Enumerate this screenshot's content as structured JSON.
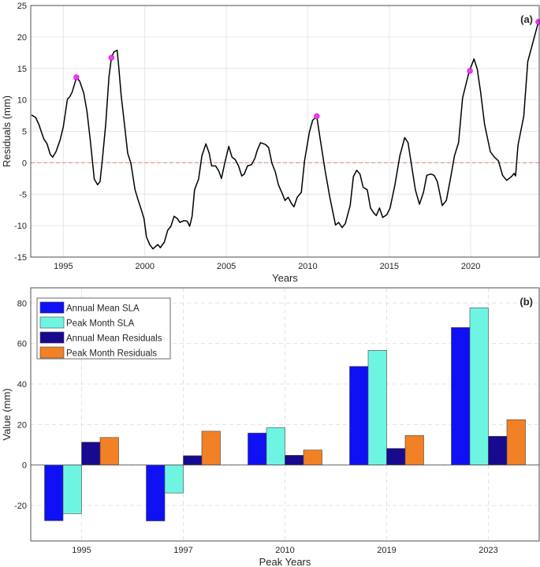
{
  "chart_data": [
    {
      "type": "line",
      "panel_label": "(a)",
      "xlabel": "Years",
      "ylabel": "Residuals (mm)",
      "xlim": [
        1993.0,
        2024.2
      ],
      "ylim": [
        -15,
        25
      ],
      "xticks": [
        1995,
        2000,
        2005,
        2010,
        2015,
        2020
      ],
      "yticks": [
        -15,
        -10,
        -5,
        0,
        5,
        10,
        15,
        20,
        25
      ],
      "grid": true,
      "zero_line": {
        "y": 0,
        "style": "dashed",
        "color": "#f08080"
      },
      "line_color": "#000000",
      "x": [
        1993.05,
        1993.3,
        1993.5,
        1993.8,
        1994.0,
        1994.2,
        1994.35,
        1994.55,
        1994.8,
        1995.0,
        1995.25,
        1995.4,
        1995.55,
        1995.8,
        1996.0,
        1996.25,
        1996.45,
        1996.65,
        1996.9,
        1997.1,
        1997.25,
        1997.4,
        1997.6,
        1997.8,
        1997.95,
        1998.1,
        1998.3,
        1998.4,
        1998.55,
        1998.75,
        1998.95,
        1999.15,
        1999.4,
        1999.6,
        1999.8,
        1999.95,
        2000.1,
        2000.3,
        2000.5,
        2000.8,
        2000.95,
        2001.2,
        2001.4,
        2001.6,
        2001.8,
        2002.0,
        2002.15,
        2002.4,
        2002.6,
        2002.75,
        2002.9,
        2003.05,
        2003.3,
        2003.5,
        2003.75,
        2003.95,
        2004.1,
        2004.35,
        2004.55,
        2004.7,
        2004.9,
        2005.15,
        2005.35,
        2005.55,
        2005.75,
        2005.95,
        2006.1,
        2006.3,
        2006.55,
        2006.75,
        2006.9,
        2007.1,
        2007.4,
        2007.6,
        2007.8,
        2008.0,
        2008.2,
        2008.4,
        2008.6,
        2008.8,
        2009.0,
        2009.15,
        2009.35,
        2009.6,
        2009.8,
        2010.1,
        2010.3,
        2010.55,
        2010.75,
        2011.05,
        2011.35,
        2011.7,
        2011.9,
        2012.1,
        2012.3,
        2012.6,
        2012.8,
        2013.0,
        2013.2,
        2013.4,
        2013.65,
        2013.85,
        2014.05,
        2014.2,
        2014.4,
        2014.6,
        2014.85,
        2015.05,
        2015.35,
        2015.65,
        2015.95,
        2016.15,
        2016.35,
        2016.6,
        2016.85,
        2017.1,
        2017.3,
        2017.55,
        2017.75,
        2017.95,
        2018.25,
        2018.5,
        2018.75,
        2019.0,
        2019.25,
        2019.5,
        2019.9,
        2020.2,
        2020.4,
        2020.6,
        2020.85,
        2021.2,
        2021.45,
        2021.7,
        2021.95,
        2022.2,
        2022.5,
        2022.65,
        2022.75,
        2022.9,
        2023.25,
        2023.5,
        2024.15
      ],
      "y": [
        7.6,
        7.2,
        6.1,
        3.8,
        3.0,
        1.3,
        0.9,
        1.75,
        3.6,
        5.7,
        10.1,
        10.5,
        11.3,
        13.5,
        13.0,
        11.1,
        8.2,
        3.6,
        -2.6,
        -3.5,
        -3.0,
        0.7,
        6.1,
        13.6,
        16.7,
        17.6,
        17.9,
        15.3,
        10.7,
        6.1,
        1.5,
        -0.1,
        -4.3,
        -6.0,
        -7.6,
        -8.9,
        -11.8,
        -13.0,
        -13.7,
        -13.0,
        -13.5,
        -12.6,
        -10.75,
        -10.1,
        -8.5,
        -8.9,
        -9.5,
        -9.2,
        -9.3,
        -10.1,
        -8.5,
        -4.3,
        -2.6,
        1.1,
        3.0,
        1.5,
        -0.5,
        -0.5,
        -1.4,
        -2.5,
        -0.1,
        2.6,
        0.9,
        0.5,
        -0.5,
        -2.1,
        -1.8,
        -0.5,
        -0.3,
        0.7,
        2.0,
        3.2,
        2.9,
        2.4,
        -0.1,
        -1.4,
        -3.5,
        -4.7,
        -6.0,
        -5.5,
        -6.5,
        -7.0,
        -5.5,
        -4.7,
        0.3,
        4.9,
        6.75,
        7.4,
        4.0,
        -1.0,
        -5.5,
        -9.9,
        -9.5,
        -10.3,
        -9.7,
        -6.8,
        -2.2,
        -1.2,
        -1.8,
        -3.9,
        -4.3,
        -7.2,
        -8.0,
        -8.4,
        -7.2,
        -8.7,
        -8.25,
        -7.2,
        -3.5,
        1.1,
        4.0,
        3.2,
        -0.1,
        -4.3,
        -6.6,
        -4.7,
        -2.0,
        -1.8,
        -2.0,
        -3.0,
        -6.8,
        -6.0,
        -2.6,
        1.1,
        3.2,
        10.3,
        14.5,
        16.5,
        14.9,
        11.3,
        6.1,
        1.75,
        0.9,
        0.3,
        -2.0,
        -2.8,
        -2.2,
        -1.7,
        -2.1,
        2.8,
        7.4,
        16.1,
        22.4
      ],
      "markers": {
        "color": "#ff33ff",
        "x": [
          1995.8,
          1997.95,
          2010.55,
          2019.95,
          2024.15
        ],
        "y": [
          13.6,
          16.7,
          7.4,
          14.6,
          22.4
        ]
      }
    },
    {
      "type": "bar",
      "panel_label": "(b)",
      "xlabel": "Peak Years",
      "ylabel": "Value (mm)",
      "categories": [
        "1995",
        "1997",
        "2010",
        "2019",
        "2023"
      ],
      "ylim": [
        -37.5,
        87.5
      ],
      "yticks": [
        -20,
        0,
        20,
        40,
        60,
        80
      ],
      "grid": true,
      "grid_style": "dashed",
      "legend_position": "top-left",
      "series": [
        {
          "name": "Annual Mean SLA",
          "color": "#1010f5",
          "values": [
            -27.5,
            -27.6,
            15.8,
            48.7,
            67.9
          ]
        },
        {
          "name": "Peak Month SLA",
          "color": "#6ef5e2",
          "values": [
            -24.0,
            -13.8,
            18.5,
            56.6,
            77.6
          ]
        },
        {
          "name": "Annual Mean Residuals",
          "color": "#180a8e",
          "values": [
            11.3,
            4.6,
            4.8,
            8.2,
            14.2
          ]
        },
        {
          "name": "Peak Month Residuals",
          "color": "#f28025",
          "values": [
            13.6,
            16.7,
            7.4,
            14.6,
            22.4
          ]
        }
      ]
    }
  ]
}
